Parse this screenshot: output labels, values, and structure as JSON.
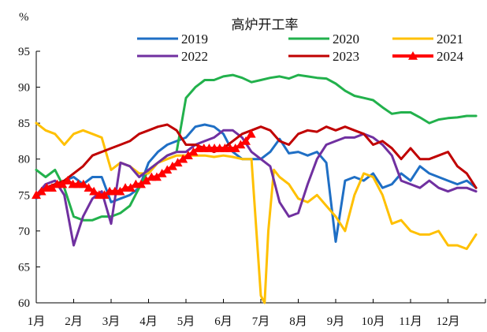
{
  "chart_data": {
    "type": "line",
    "title": "高炉开工率",
    "ylabel": "%",
    "ylim": [
      60,
      95
    ],
    "yticks": [
      60,
      65,
      70,
      75,
      80,
      85,
      90,
      95
    ],
    "xlim": [
      1,
      13
    ],
    "x_tick_labels": [
      "1月",
      "2月",
      "3月",
      "4月",
      "5月",
      "6月",
      "7月",
      "8月",
      "9月",
      "10月",
      "11月",
      "12月"
    ],
    "grid": false,
    "legend_position": "top",
    "series": [
      {
        "name": "2019",
        "color": "#1F6FC5",
        "x": [
          1.0,
          1.25,
          1.5,
          1.75,
          2.0,
          2.25,
          2.5,
          2.75,
          3.0,
          3.25,
          3.5,
          3.75,
          4.0,
          4.25,
          4.5,
          4.75,
          5.0,
          5.25,
          5.5,
          5.75,
          6.0,
          6.25,
          6.5,
          6.75,
          7.0,
          7.25,
          7.5,
          7.75,
          8.0,
          8.25,
          8.5,
          8.75,
          9.0,
          9.25,
          9.5,
          9.75,
          10.0,
          10.25,
          10.5,
          10.75,
          11.0,
          11.25,
          11.5,
          11.75,
          12.0,
          12.25,
          12.5,
          12.75
        ],
        "values": [
          74.5,
          76.0,
          76.5,
          77.0,
          77.5,
          76.5,
          77.5,
          77.5,
          74.0,
          74.5,
          75.0,
          76.0,
          79.5,
          81.0,
          82.0,
          82.5,
          83.0,
          84.5,
          84.8,
          84.5,
          83.5,
          81.0,
          80.0,
          80.0,
          80.0,
          81.0,
          82.8,
          80.8,
          81.0,
          80.5,
          81.0,
          79.5,
          68.5,
          77.0,
          77.5,
          77.0,
          78.0,
          76.0,
          76.5,
          78.0,
          77.0,
          79.0,
          78.0,
          77.5,
          77.0,
          76.5,
          77.0,
          76.0
        ]
      },
      {
        "name": "2020",
        "color": "#22B14C",
        "x": [
          1.0,
          1.25,
          1.5,
          1.75,
          2.0,
          2.25,
          2.5,
          2.75,
          3.0,
          3.25,
          3.5,
          3.75,
          4.0,
          4.25,
          4.5,
          4.75,
          5.0,
          5.25,
          5.5,
          5.75,
          6.0,
          6.25,
          6.5,
          6.75,
          7.0,
          7.25,
          7.5,
          7.75,
          8.0,
          8.25,
          8.5,
          8.75,
          9.0,
          9.25,
          9.5,
          9.75,
          10.0,
          10.25,
          10.5,
          10.75,
          11.0,
          11.25,
          11.5,
          11.75,
          12.0,
          12.25,
          12.5,
          12.75
        ],
        "values": [
          78.5,
          77.5,
          78.5,
          76.0,
          72.0,
          71.5,
          71.5,
          72.0,
          72.0,
          72.5,
          73.5,
          76.0,
          78.5,
          79.5,
          80.5,
          81.0,
          88.5,
          90.0,
          91.0,
          91.0,
          91.5,
          91.7,
          91.3,
          90.7,
          91.0,
          91.3,
          91.5,
          91.2,
          91.7,
          91.5,
          91.3,
          91.2,
          90.5,
          89.5,
          88.8,
          88.5,
          88.2,
          87.2,
          86.3,
          86.5,
          86.5,
          85.8,
          85.0,
          85.5,
          85.7,
          85.8,
          86.0,
          86.0
        ]
      },
      {
        "name": "2021",
        "color": "#FFC000",
        "x": [
          1.0,
          1.25,
          1.5,
          1.75,
          2.0,
          2.25,
          2.5,
          2.75,
          3.0,
          3.25,
          3.5,
          3.75,
          4.0,
          4.25,
          4.5,
          4.75,
          5.0,
          5.25,
          5.5,
          5.75,
          6.0,
          6.25,
          6.5,
          6.75,
          7.0,
          7.1,
          7.2,
          7.35,
          7.5,
          7.75,
          8.0,
          8.25,
          8.5,
          8.75,
          9.0,
          9.25,
          9.5,
          9.75,
          10.0,
          10.25,
          10.5,
          10.75,
          11.0,
          11.25,
          11.5,
          11.75,
          12.0,
          12.25,
          12.5,
          12.75
        ],
        "values": [
          85.0,
          84.0,
          83.5,
          82.0,
          83.5,
          84.0,
          83.5,
          83.0,
          78.5,
          79.5,
          79.0,
          78.0,
          78.0,
          79.5,
          80.0,
          80.5,
          80.5,
          80.5,
          80.5,
          80.3,
          80.5,
          80.3,
          80.0,
          80.0,
          61.0,
          60.0,
          70.0,
          78.5,
          77.5,
          76.5,
          74.5,
          74.0,
          75.0,
          73.5,
          72.0,
          70.0,
          75.0,
          78.0,
          77.5,
          75.0,
          71.0,
          71.5,
          70.0,
          69.5,
          69.5,
          70.0,
          68.0,
          68.0,
          67.5,
          69.5
        ]
      },
      {
        "name": "2022",
        "color": "#7030A0",
        "x": [
          1.0,
          1.25,
          1.5,
          1.75,
          2.0,
          2.25,
          2.5,
          2.75,
          3.0,
          3.25,
          3.5,
          3.75,
          4.0,
          4.25,
          4.5,
          4.75,
          5.0,
          5.25,
          5.5,
          5.75,
          6.0,
          6.25,
          6.5,
          6.75,
          7.0,
          7.25,
          7.5,
          7.75,
          8.0,
          8.25,
          8.5,
          8.75,
          9.0,
          9.25,
          9.5,
          9.75,
          10.0,
          10.25,
          10.5,
          10.75,
          11.0,
          11.25,
          11.5,
          11.75,
          12.0,
          12.25,
          12.5,
          12.75
        ],
        "values": [
          75.0,
          76.5,
          77.0,
          75.0,
          68.0,
          72.0,
          74.5,
          75.5,
          71.0,
          79.5,
          79.0,
          77.5,
          78.5,
          79.5,
          80.5,
          81.0,
          81.0,
          82.0,
          82.5,
          83.0,
          84.0,
          84.0,
          83.0,
          81.0,
          80.0,
          79.0,
          74.0,
          72.0,
          72.5,
          76.5,
          80.0,
          82.0,
          82.5,
          83.0,
          83.0,
          83.5,
          83.0,
          82.0,
          80.5,
          77.0,
          76.5,
          76.0,
          77.0,
          76.0,
          75.5,
          76.0,
          76.0,
          75.5
        ]
      },
      {
        "name": "2023",
        "color": "#C00000",
        "x": [
          1.0,
          1.25,
          1.5,
          1.75,
          2.0,
          2.25,
          2.5,
          2.75,
          3.0,
          3.25,
          3.5,
          3.75,
          4.0,
          4.25,
          4.5,
          4.75,
          5.0,
          5.25,
          5.5,
          5.75,
          6.0,
          6.25,
          6.5,
          6.75,
          7.0,
          7.25,
          7.5,
          7.75,
          8.0,
          8.25,
          8.5,
          8.75,
          9.0,
          9.25,
          9.5,
          9.75,
          10.0,
          10.25,
          10.5,
          10.75,
          11.0,
          11.25,
          11.5,
          11.75,
          12.0,
          12.25,
          12.5,
          12.75
        ],
        "values": [
          75.0,
          76.0,
          76.5,
          77.0,
          78.0,
          79.0,
          80.5,
          81.0,
          81.5,
          82.0,
          82.5,
          83.5,
          84.0,
          84.5,
          84.8,
          84.0,
          82.0,
          82.0,
          81.5,
          81.0,
          81.5,
          82.5,
          83.5,
          84.0,
          84.5,
          84.0,
          82.5,
          82.0,
          83.5,
          84.0,
          83.8,
          84.5,
          84.0,
          84.5,
          84.0,
          83.5,
          82.0,
          82.5,
          81.5,
          80.0,
          81.5,
          80.0,
          80.0,
          80.5,
          81.0,
          79.0,
          78.0,
          76.0
        ]
      },
      {
        "name": "2024",
        "color": "#FF0000",
        "marker": "triangle",
        "x": [
          1.0,
          1.14,
          1.28,
          1.42,
          1.56,
          1.7,
          1.84,
          1.98,
          2.12,
          2.26,
          2.4,
          2.54,
          2.68,
          2.82,
          2.96,
          3.1,
          3.24,
          3.38,
          3.52,
          3.66,
          3.8,
          3.94,
          4.08,
          4.22,
          4.36,
          4.5,
          4.64,
          4.78,
          4.92,
          5.06,
          5.2,
          5.34,
          5.48,
          5.62,
          5.76,
          5.9,
          6.04,
          6.18,
          6.32,
          6.46,
          6.6,
          6.74
        ],
        "values": [
          75.0,
          75.5,
          76.0,
          76.0,
          76.5,
          76.5,
          77.0,
          76.5,
          76.5,
          76.5,
          76.0,
          75.5,
          75.0,
          75.0,
          75.5,
          75.5,
          75.5,
          76.0,
          76.0,
          76.5,
          76.5,
          77.0,
          77.5,
          77.5,
          78.0,
          78.5,
          79.0,
          79.5,
          80.0,
          80.5,
          81.0,
          81.5,
          81.5,
          81.5,
          81.5,
          81.5,
          81.5,
          81.5,
          81.5,
          82.0,
          82.5,
          83.5
        ]
      }
    ]
  }
}
